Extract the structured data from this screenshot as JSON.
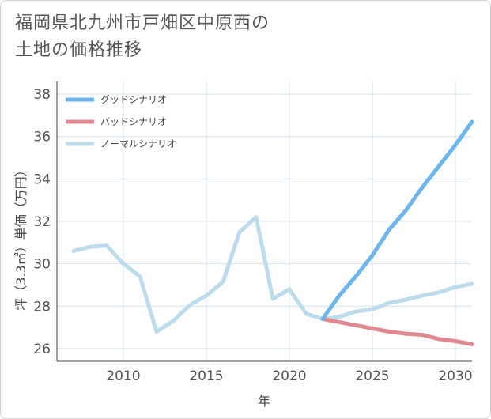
{
  "title_lines": [
    "福岡県北九州市戸畑区中原西の",
    "土地の価格推移"
  ],
  "chart_data": {
    "type": "line",
    "title": "福岡県北九州市戸畑区中原西の土地の価格推移",
    "xlabel": "年",
    "ylabel": "坪（3.3㎡）単価（万円）",
    "xlim": [
      2006,
      2031
    ],
    "ylim": [
      25.4,
      38.6
    ],
    "xticks": [
      2010,
      2015,
      2020,
      2025,
      2030
    ],
    "yticks": [
      26,
      28,
      30,
      32,
      34,
      36,
      38
    ],
    "grid": true,
    "legend_position": "top-left",
    "series": [
      {
        "name": "グッドシナリオ",
        "color": "#6cb6ec",
        "x": [
          2022,
          2023,
          2024,
          2025,
          2026,
          2027,
          2028,
          2029,
          2030,
          2031
        ],
        "y": [
          27.4,
          28.5,
          29.4,
          30.4,
          31.6,
          32.5,
          33.6,
          34.6,
          35.6,
          36.7
        ]
      },
      {
        "name": "バッドシナリオ",
        "color": "#e0888f",
        "x": [
          2022,
          2023,
          2024,
          2025,
          2026,
          2027,
          2028,
          2029,
          2030,
          2031
        ],
        "y": [
          27.4,
          27.25,
          27.1,
          26.95,
          26.8,
          26.7,
          26.65,
          26.45,
          26.35,
          26.2
        ]
      },
      {
        "name": "ノーマルシナリオ",
        "color": "#bcdcec",
        "x": [
          2007,
          2008,
          2009,
          2010,
          2011,
          2012,
          2013,
          2014,
          2015,
          2016,
          2017,
          2018,
          2019,
          2020,
          2021,
          2022,
          2023,
          2024,
          2025,
          2026,
          2027,
          2028,
          2029,
          2030,
          2031
        ],
        "y": [
          30.6,
          30.8,
          30.85,
          30.0,
          29.4,
          26.8,
          27.3,
          28.05,
          28.5,
          29.15,
          31.5,
          32.2,
          28.35,
          28.8,
          27.65,
          27.4,
          27.5,
          27.75,
          27.85,
          28.15,
          28.3,
          28.5,
          28.65,
          28.9,
          29.05
        ]
      }
    ]
  }
}
